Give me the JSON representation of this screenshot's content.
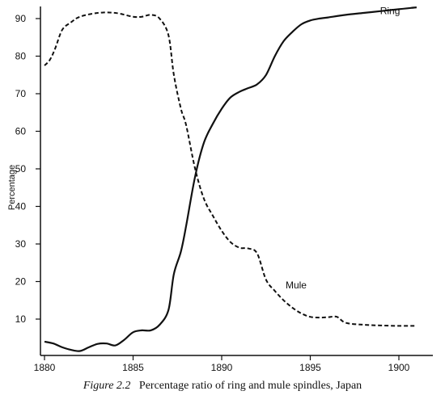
{
  "chart_data": {
    "type": "line",
    "xlabel": "",
    "ylabel": "Percentage",
    "xlim": [
      1880,
      1901.5
    ],
    "ylim": [
      0,
      95
    ],
    "xticks": [
      1880,
      1885,
      1890,
      1895,
      1900
    ],
    "yticks": [
      10,
      20,
      30,
      40,
      50,
      60,
      70,
      80,
      90
    ],
    "grid": false,
    "series": [
      {
        "name": "Ring",
        "style": "solid",
        "x": [
          1880,
          1880.5,
          1881,
          1881.5,
          1882,
          1882.5,
          1883,
          1883.5,
          1884,
          1884.5,
          1885,
          1885.5,
          1886,
          1886.5,
          1887,
          1887.3,
          1887.7,
          1888,
          1888.5,
          1889,
          1889.5,
          1890,
          1890.5,
          1891,
          1891.5,
          1892,
          1892.5,
          1893,
          1893.5,
          1894,
          1894.5,
          1895,
          1895.5,
          1896,
          1897,
          1898,
          1899,
          1900,
          1901
        ],
        "values": [
          4,
          3.5,
          2.5,
          1.8,
          1.5,
          2.5,
          3.4,
          3.5,
          3,
          4.5,
          6.5,
          7,
          7,
          8.5,
          12.5,
          22,
          28,
          35,
          48,
          57,
          62,
          66,
          69,
          70.5,
          71.5,
          72.5,
          75,
          80,
          84,
          86.5,
          88.5,
          89.5,
          90,
          90.3,
          91,
          91.5,
          92,
          92.5,
          93
        ]
      },
      {
        "name": "Mule",
        "style": "dashed",
        "x": [
          1880,
          1880.3,
          1880.6,
          1881,
          1881.5,
          1882,
          1883,
          1884,
          1885,
          1885.5,
          1886,
          1886.5,
          1887,
          1887.3,
          1887.7,
          1888,
          1888.5,
          1889,
          1889.5,
          1890,
          1890.5,
          1891,
          1891.5,
          1892,
          1892.5,
          1893,
          1893.5,
          1894,
          1894.5,
          1895,
          1895.5,
          1896,
          1896.5,
          1897,
          1898,
          1899,
          1900,
          1901
        ],
        "values": [
          77.5,
          79,
          82,
          87,
          89,
          90.5,
          91.5,
          91.5,
          90.5,
          90.5,
          91,
          90,
          85.5,
          75,
          66,
          61.5,
          50,
          42,
          37.5,
          33.5,
          30.5,
          29,
          28.8,
          27.5,
          20.5,
          17.5,
          15,
          13,
          11.5,
          10.6,
          10.4,
          10.5,
          10.6,
          9,
          8.5,
          8.3,
          8.2,
          8.2
        ]
      }
    ],
    "annotations": [
      {
        "text": "Ring",
        "x": 1899.5,
        "y": 92
      },
      {
        "text": "Mule",
        "x": 1894.2,
        "y": 19
      }
    ]
  },
  "caption": {
    "figure_label": "Figure 2.2",
    "text": "Percentage ratio of ring and mule spindles, Japan"
  }
}
